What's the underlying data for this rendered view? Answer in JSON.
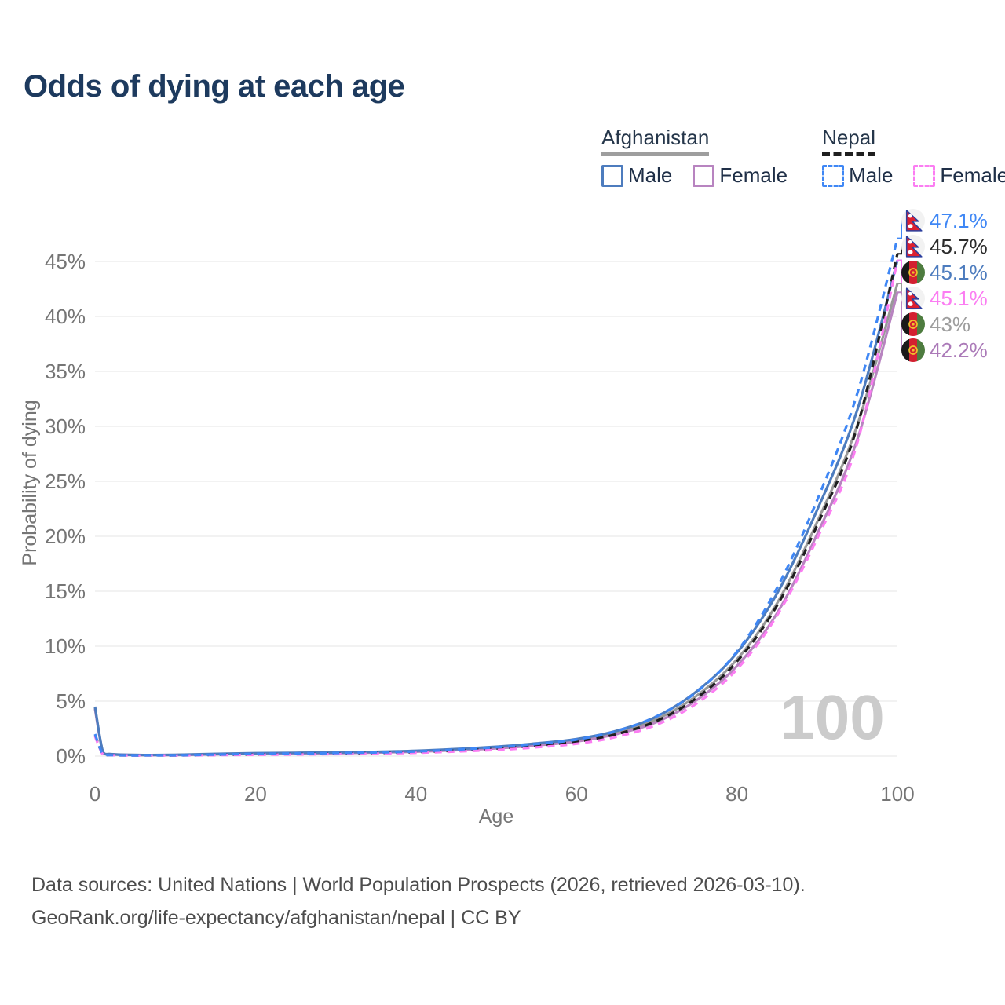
{
  "title": "Odds of dying at each age",
  "legend": {
    "groups": [
      {
        "label": "Afghanistan",
        "line_style": "solid",
        "underline_color": "#9e9e9e",
        "items": [
          {
            "label": "Male",
            "color": "#4d7cbe"
          },
          {
            "label": "Female",
            "color": "#b884c0"
          }
        ]
      },
      {
        "label": "Nepal",
        "line_style": "dashed",
        "underline_color": "#1f1f1f",
        "items": [
          {
            "label": "Male",
            "color": "#3f87f5"
          },
          {
            "label": "Female",
            "color": "#fb7df2"
          }
        ]
      }
    ]
  },
  "chart_data": {
    "type": "line",
    "title": "Odds of dying at each age",
    "xlabel": "Age",
    "ylabel": "Probability of dying",
    "xlim": [
      0,
      100
    ],
    "ylim": [
      0,
      47.5
    ],
    "x_ticks": [
      0,
      20,
      40,
      60,
      80,
      100
    ],
    "y_ticks": [
      "0%",
      "5%",
      "10%",
      "15%",
      "20%",
      "25%",
      "30%",
      "35%",
      "40%",
      "45%"
    ],
    "grid": "horizontal-only",
    "watermark": "100",
    "x": [
      0,
      1,
      2,
      5,
      10,
      20,
      30,
      40,
      50,
      55,
      60,
      65,
      70,
      75,
      80,
      85,
      90,
      95,
      100
    ],
    "series": [
      {
        "name": "Afghanistan Male",
        "country": "afghanistan",
        "sex": "male",
        "color": "#4d7cbe",
        "dash": false,
        "end_value": 45.1,
        "end_label": "45.1%",
        "values": [
          4.5,
          0.35,
          0.18,
          0.11,
          0.12,
          0.27,
          0.33,
          0.48,
          0.85,
          1.15,
          1.55,
          2.3,
          3.6,
          5.9,
          9.4,
          14.8,
          22.4,
          31.5,
          45.1
        ]
      },
      {
        "name": "Afghanistan Female",
        "country": "afghanistan",
        "sex": "female",
        "color": "#b884c0",
        "dash": false,
        "end_value": 42.2,
        "end_label": "42.2%",
        "values": [
          4.3,
          0.33,
          0.17,
          0.1,
          0.1,
          0.21,
          0.27,
          0.4,
          0.7,
          0.97,
          1.33,
          2.0,
          3.1,
          5.1,
          8.2,
          13.0,
          20.2,
          28.8,
          42.2
        ]
      },
      {
        "name": "Afghanistan Both sexes",
        "country": "afghanistan",
        "sex": "both",
        "color": "#999999",
        "dash": false,
        "end_value": 43.0,
        "end_label": "43%",
        "values": [
          4.4,
          0.34,
          0.175,
          0.105,
          0.11,
          0.24,
          0.3,
          0.44,
          0.78,
          1.06,
          1.45,
          2.15,
          3.35,
          5.5,
          8.8,
          13.9,
          21.3,
          30.1,
          43.0
        ]
      },
      {
        "name": "Nepal Male",
        "country": "nepal",
        "sex": "male",
        "color": "#3f87f5",
        "dash": true,
        "end_value": 47.1,
        "end_label": "47.1%",
        "values": [
          2.0,
          0.16,
          0.09,
          0.06,
          0.07,
          0.2,
          0.28,
          0.42,
          0.8,
          1.1,
          1.5,
          2.28,
          3.62,
          5.85,
          9.5,
          15.3,
          23.3,
          33.0,
          47.1
        ]
      },
      {
        "name": "Nepal Female",
        "country": "nepal",
        "sex": "female",
        "color": "#fb7df2",
        "dash": true,
        "end_value": 45.1,
        "end_label": "45.1%",
        "values": [
          1.8,
          0.14,
          0.08,
          0.05,
          0.055,
          0.12,
          0.18,
          0.3,
          0.56,
          0.8,
          1.12,
          1.75,
          2.85,
          4.8,
          7.9,
          12.8,
          19.8,
          28.5,
          45.1
        ]
      },
      {
        "name": "Nepal Both sexes",
        "country": "nepal",
        "sex": "both",
        "color": "#1f1f1f",
        "dash": true,
        "end_value": 45.7,
        "end_label": "45.7%",
        "values": [
          1.9,
          0.15,
          0.085,
          0.055,
          0.06,
          0.16,
          0.23,
          0.36,
          0.68,
          0.95,
          1.3,
          2.0,
          3.2,
          5.3,
          8.6,
          13.7,
          21.0,
          30.0,
          45.7
        ]
      }
    ],
    "end_labels": [
      {
        "text": "47.1%",
        "flag": "nepal-flag-icon",
        "series": "Nepal Male",
        "color": "#3f87f5"
      },
      {
        "text": "45.7%",
        "flag": "nepal-flag-icon",
        "series": "Nepal Both sexes",
        "color": "#2b2b2b"
      },
      {
        "text": "45.1%",
        "flag": "afghanistan-flag-icon",
        "series": "Afghanistan Male",
        "color": "#4d7cbe"
      },
      {
        "text": "45.1%",
        "flag": "nepal-flag-icon",
        "series": "Nepal Female",
        "color": "#fb7df2"
      },
      {
        "text": "43%",
        "flag": "afghanistan-flag-icon",
        "series": "Afghanistan Both sexes",
        "color": "#9e9e9e"
      },
      {
        "text": "42.2%",
        "flag": "afghanistan-flag-icon",
        "series": "Afghanistan Female",
        "color": "#ab7ab8"
      }
    ]
  },
  "footer": {
    "line1": "Data sources: United Nations | World Population Prospects (2026, retrieved 2026-03-10).",
    "line2": "GeoRank.org/life-expectancy/afghanistan/nepal | CC BY"
  }
}
